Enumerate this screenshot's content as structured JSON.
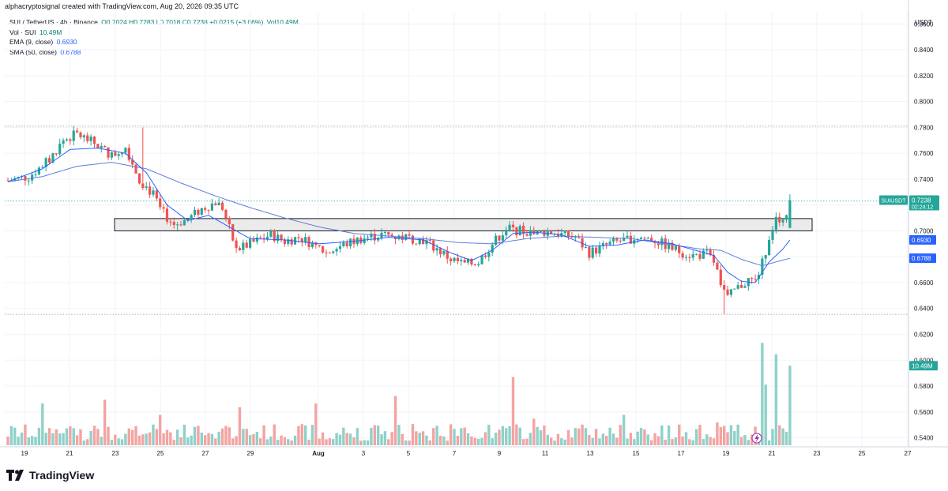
{
  "header": {
    "caption": "alphacryptosignal created with TradingView.com, Aug 20, 2026 09:35 UTC"
  },
  "legend": {
    "symbol": "SUI / TetherUS · 4h · Binance",
    "ohlc_label": "O0.7024 H0.7283 L0.7018 C0.7238 +0.0215 (+3.06%)",
    "volume_short": "Vol10.49M",
    "vol_label": "Vol · SUI",
    "vol_value": "10.49M",
    "ema_label": "EMA (9, close)",
    "ema_value": "0.6930",
    "sma_label": "SMA (50, close)",
    "sma_value": "0.6788"
  },
  "axis": {
    "currency": "USDT"
  },
  "tags": {
    "symbol": "SUIUSDT",
    "price": "0.7238",
    "countdown": "02:24:12",
    "ema": "0.6930",
    "sma": "0.6788",
    "volume": "10.49M"
  },
  "brand": {
    "name": "TradingView"
  },
  "colors": {
    "up": "#26a69a",
    "down": "#ef5350",
    "vol_up": "#8fd1c9",
    "vol_down": "#f3a4a3",
    "ema": "#2962ff",
    "sma": "#5b7fd9",
    "zone_fill": "#e6e6e6",
    "zone_border": "#131722"
  },
  "chart_data": {
    "type": "candlestick",
    "timeframe": "4h",
    "y_axis_ticks": [
      "0.8600",
      "0.8400",
      "0.8200",
      "0.8000",
      "0.7800",
      "0.7600",
      "0.7400",
      "0.7200",
      "0.7000",
      "0.6800",
      "0.6600",
      "0.6400",
      "0.6200",
      "0.6000",
      "0.5800",
      "0.5600",
      "0.5400"
    ],
    "x_axis_ticks": [
      "19",
      "21",
      "23",
      "25",
      "27",
      "29",
      "Aug",
      "3",
      "5",
      "7",
      "9",
      "11",
      "13",
      "15",
      "17",
      "19",
      "21",
      "23",
      "25",
      "27"
    ],
    "ylim": [
      0.533,
      0.87
    ],
    "support_resistance_zone": [
      0.7,
      0.7095
    ],
    "dotted_levels": [
      0.781,
      0.723,
      0.6355
    ],
    "last": {
      "open": 0.7024,
      "high": 0.7283,
      "low": 0.7018,
      "close": 0.7238,
      "change": 0.0215,
      "change_pct": 3.06,
      "volume": "10.49M"
    },
    "ema9_last": 0.693,
    "sma50_last": 0.6788,
    "close_path": [
      [
        0,
        0.739
      ],
      [
        6,
        0.742
      ],
      [
        12,
        0.755
      ],
      [
        16,
        0.77
      ],
      [
        20,
        0.775
      ],
      [
        26,
        0.766
      ],
      [
        30,
        0.758
      ],
      [
        34,
        0.765
      ],
      [
        38,
        0.74
      ],
      [
        42,
        0.728
      ],
      [
        44,
        0.716
      ],
      [
        48,
        0.705
      ],
      [
        52,
        0.709
      ],
      [
        56,
        0.717
      ],
      [
        60,
        0.722
      ],
      [
        62,
        0.718
      ],
      [
        66,
        0.685
      ],
      [
        70,
        0.69
      ],
      [
        76,
        0.697
      ],
      [
        80,
        0.692
      ],
      [
        84,
        0.695
      ],
      [
        88,
        0.69
      ],
      [
        92,
        0.683
      ],
      [
        96,
        0.688
      ],
      [
        102,
        0.694
      ],
      [
        108,
        0.697
      ],
      [
        114,
        0.695
      ],
      [
        120,
        0.693
      ],
      [
        124,
        0.686
      ],
      [
        128,
        0.678
      ],
      [
        132,
        0.674
      ],
      [
        136,
        0.676
      ],
      [
        140,
        0.69
      ],
      [
        144,
        0.702
      ],
      [
        148,
        0.7
      ],
      [
        152,
        0.697
      ],
      [
        156,
        0.7
      ],
      [
        160,
        0.697
      ],
      [
        164,
        0.695
      ],
      [
        168,
        0.683
      ],
      [
        174,
        0.69
      ],
      [
        178,
        0.693
      ],
      [
        182,
        0.695
      ],
      [
        186,
        0.694
      ],
      [
        190,
        0.689
      ],
      [
        194,
        0.684
      ],
      [
        198,
        0.681
      ],
      [
        202,
        0.682
      ],
      [
        204,
        0.676
      ],
      [
        206,
        0.66
      ],
      [
        208,
        0.648
      ],
      [
        210,
        0.654
      ],
      [
        212,
        0.658
      ],
      [
        214,
        0.662
      ],
      [
        216,
        0.661
      ],
      [
        218,
        0.675
      ],
      [
        220,
        0.695
      ],
      [
        222,
        0.712
      ],
      [
        224,
        0.705
      ],
      [
        226,
        0.7238
      ]
    ],
    "ema9_path": [
      [
        0,
        0.738
      ],
      [
        10,
        0.748
      ],
      [
        18,
        0.763
      ],
      [
        26,
        0.764
      ],
      [
        34,
        0.76
      ],
      [
        40,
        0.745
      ],
      [
        46,
        0.72
      ],
      [
        52,
        0.708
      ],
      [
        58,
        0.712
      ],
      [
        64,
        0.703
      ],
      [
        70,
        0.694
      ],
      [
        80,
        0.693
      ],
      [
        90,
        0.69
      ],
      [
        100,
        0.692
      ],
      [
        110,
        0.695
      ],
      [
        120,
        0.693
      ],
      [
        128,
        0.683
      ],
      [
        134,
        0.677
      ],
      [
        140,
        0.685
      ],
      [
        146,
        0.698
      ],
      [
        152,
        0.699
      ],
      [
        160,
        0.697
      ],
      [
        168,
        0.688
      ],
      [
        176,
        0.689
      ],
      [
        184,
        0.693
      ],
      [
        192,
        0.69
      ],
      [
        200,
        0.684
      ],
      [
        204,
        0.681
      ],
      [
        208,
        0.668
      ],
      [
        212,
        0.661
      ],
      [
        216,
        0.66
      ],
      [
        220,
        0.676
      ],
      [
        224,
        0.686
      ],
      [
        226,
        0.693
      ]
    ],
    "sma50_path": [
      [
        0,
        0.738
      ],
      [
        10,
        0.742
      ],
      [
        20,
        0.75
      ],
      [
        30,
        0.753
      ],
      [
        40,
        0.748
      ],
      [
        50,
        0.737
      ],
      [
        60,
        0.727
      ],
      [
        70,
        0.718
      ],
      [
        80,
        0.71
      ],
      [
        90,
        0.703
      ],
      [
        100,
        0.698
      ],
      [
        110,
        0.696
      ],
      [
        120,
        0.694
      ],
      [
        130,
        0.691
      ],
      [
        140,
        0.69
      ],
      [
        150,
        0.694
      ],
      [
        160,
        0.696
      ],
      [
        170,
        0.695
      ],
      [
        180,
        0.694
      ],
      [
        190,
        0.69
      ],
      [
        200,
        0.686
      ],
      [
        206,
        0.685
      ],
      [
        212,
        0.678
      ],
      [
        218,
        0.673
      ],
      [
        222,
        0.676
      ],
      [
        226,
        0.6788
      ]
    ],
    "volume_peaks_m": [
      [
        10,
        5.5
      ],
      [
        28,
        6.0
      ],
      [
        44,
        4.0
      ],
      [
        67,
        5.0
      ],
      [
        89,
        5.5
      ],
      [
        112,
        6.5
      ],
      [
        146,
        9.0
      ],
      [
        152,
        3.5
      ],
      [
        178,
        4.0
      ],
      [
        205,
        3.0
      ],
      [
        218,
        13.5
      ],
      [
        219,
        8.0
      ],
      [
        222,
        12.0
      ],
      [
        226,
        10.49
      ]
    ]
  }
}
